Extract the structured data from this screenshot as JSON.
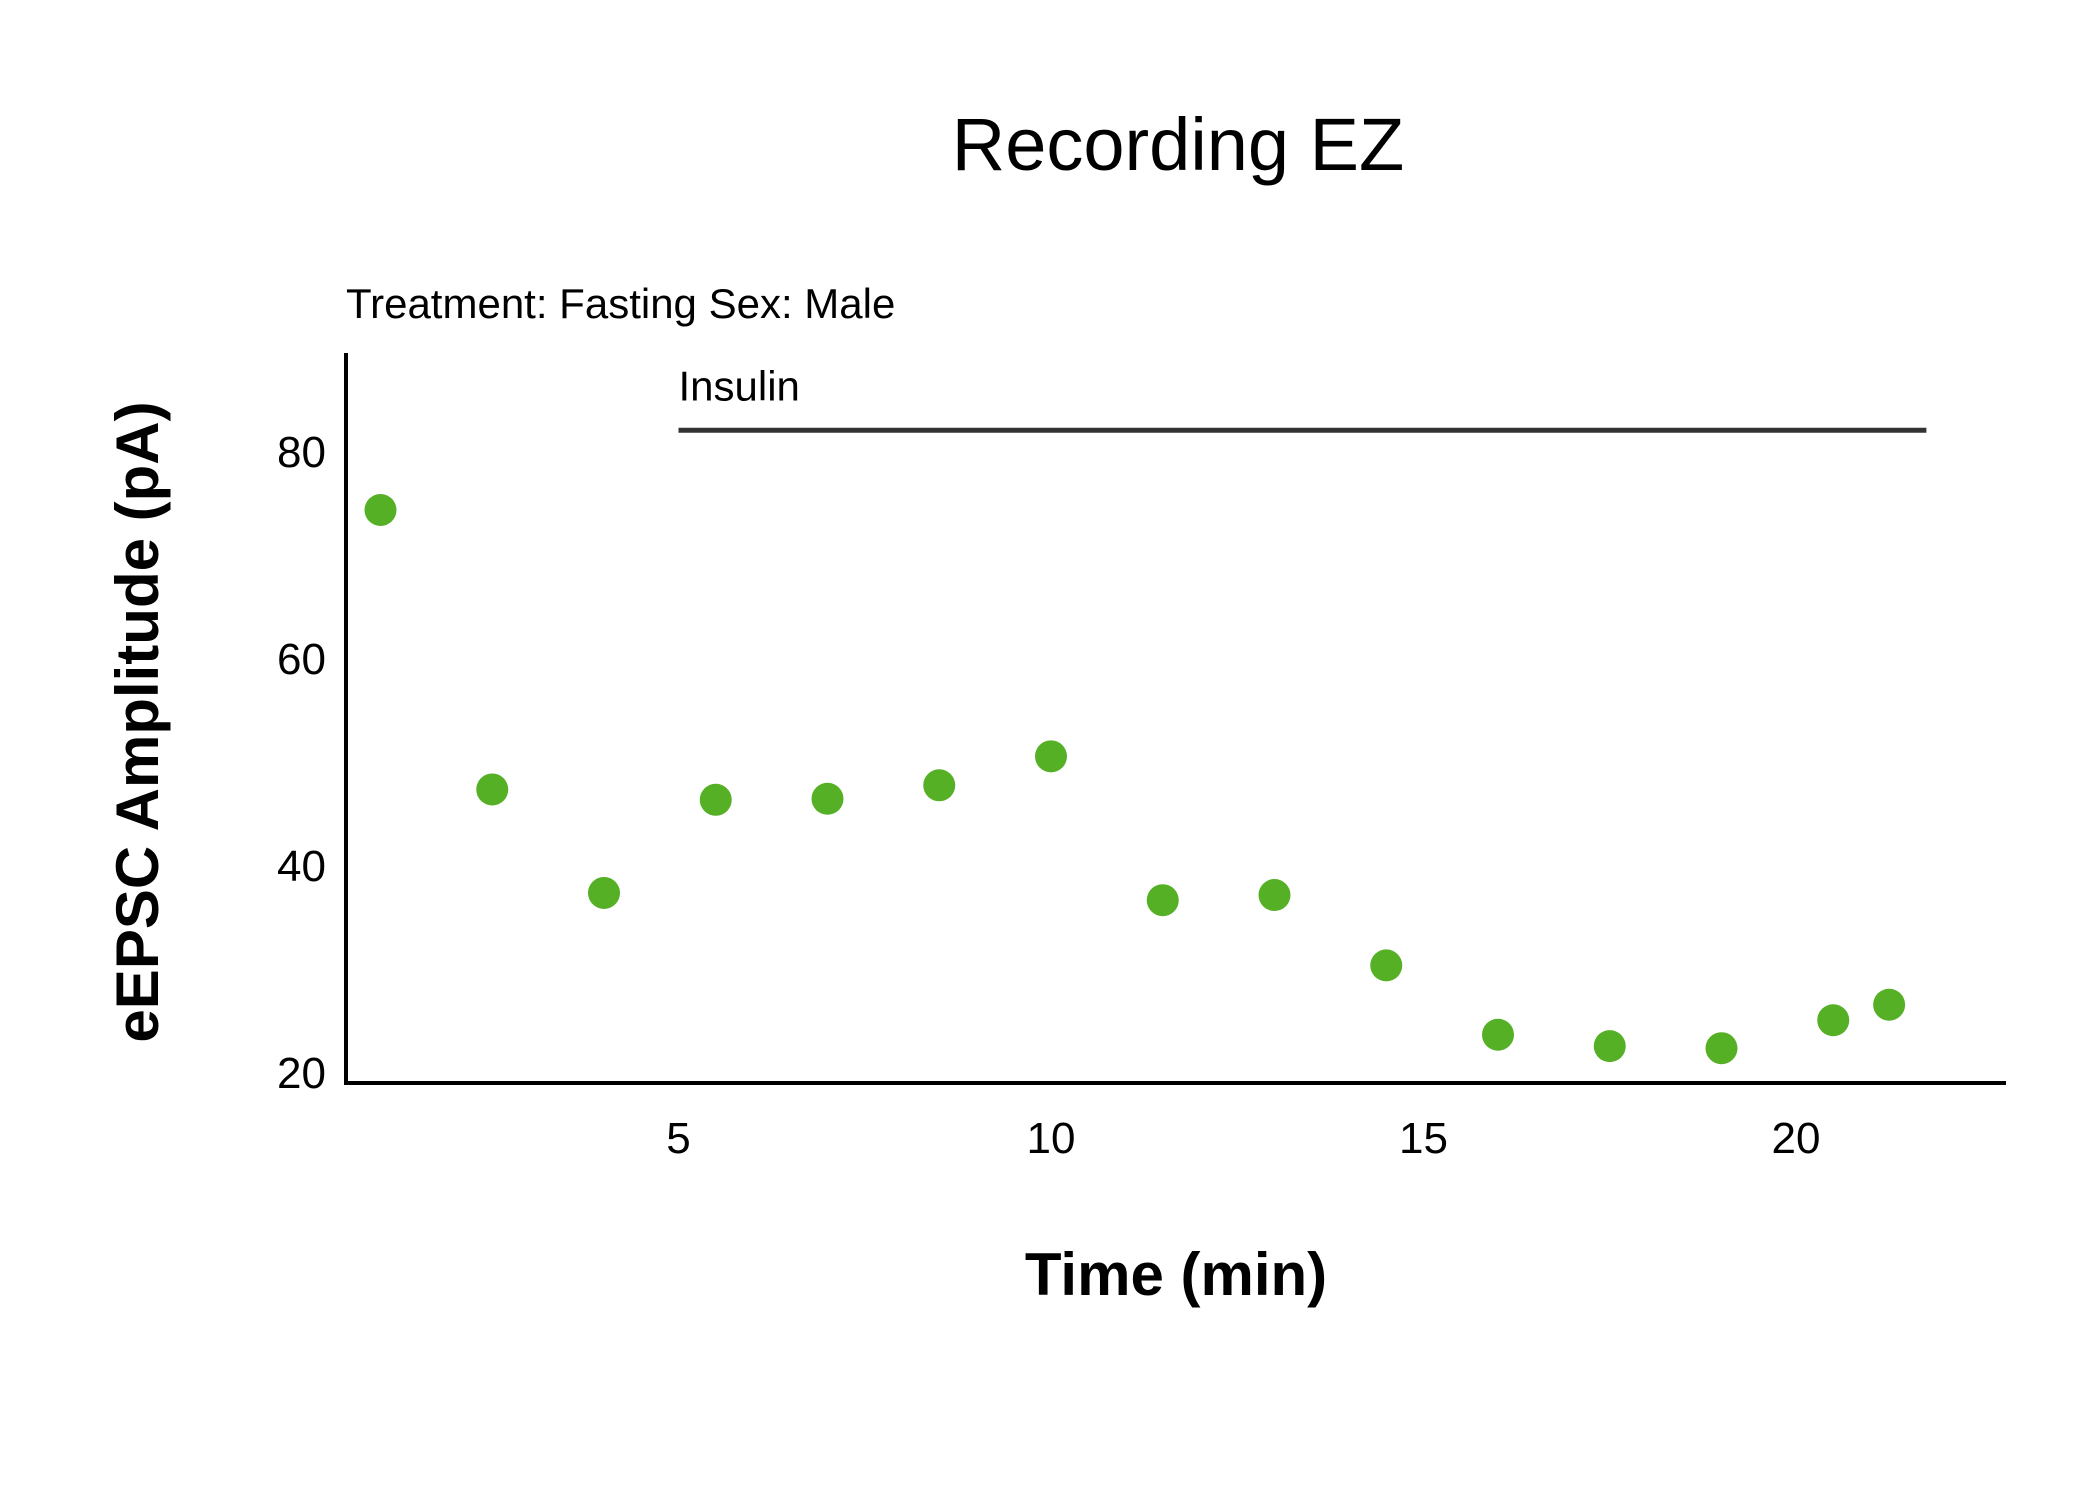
{
  "chart_data": {
    "type": "scatter",
    "title": "Recording EZ",
    "subtitle": "Treatment: Fasting  Sex: Male",
    "xlabel": "Time (min)",
    "ylabel": "eEPSC Amplitude (pA)",
    "xlim": [
      0,
      22.5
    ],
    "ylim": [
      20,
      90
    ],
    "xticks": [
      5,
      10,
      15,
      20
    ],
    "yticks": [
      20,
      40,
      60,
      80
    ],
    "grid": false,
    "legend": "none",
    "series": [
      {
        "color": "#55b026",
        "x": [
          1.0,
          2.5,
          4.0,
          5.5,
          7.0,
          8.5,
          10.0,
          11.5,
          13.0,
          14.5,
          16.0,
          17.5,
          19.0,
          20.5,
          21.25
        ],
        "y": [
          74.3,
          47.3,
          37.3,
          46.3,
          46.4,
          47.7,
          50.5,
          36.6,
          37.1,
          30.3,
          23.6,
          22.5,
          22.3,
          25.0,
          26.5
        ]
      }
    ],
    "annotations": [
      {
        "text": "Insulin",
        "x_start": 5.0,
        "x_end": 21.75,
        "y": 82
      }
    ]
  }
}
